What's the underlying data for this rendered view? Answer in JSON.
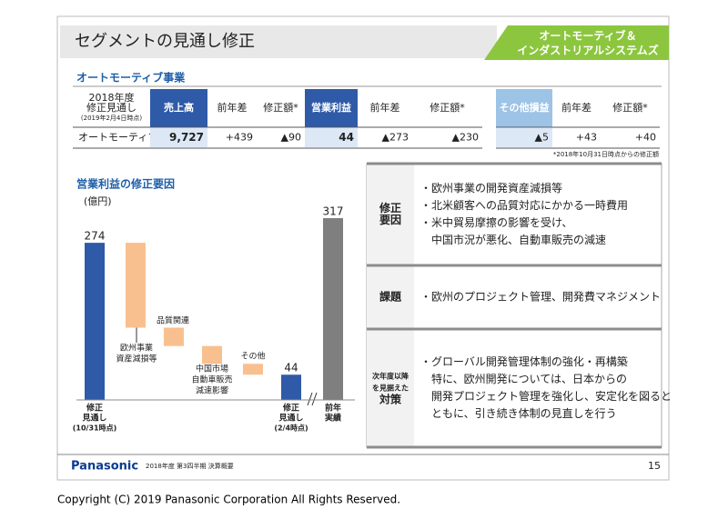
{
  "header": {
    "title": "セグメントの見通し修正",
    "tab": [
      "オートモーティブ＆",
      "インダストリアルシステムズ"
    ]
  },
  "section": "オートモーティブ事業",
  "table": {
    "header": [
      [
        "2018年度",
        "修正見通し",
        "(2019年2月4日時点)"
      ],
      "売上高",
      "前年差",
      "修正額*",
      "営業利益",
      "前年差",
      "修正額*",
      "その他損益",
      "前年差",
      "修正額*"
    ],
    "rows": [
      [
        "オートモーティブ",
        "9,727",
        "+439",
        "▲90",
        "44",
        "▲273",
        "▲230",
        "▲5",
        "+43",
        "+40"
      ]
    ],
    "note": "*2018年10月31日時点からの修正額"
  },
  "chart_data": {
    "type": "waterfall",
    "title": "営業利益の修正要因",
    "unit": "(億円)",
    "categories": [
      [
        "修正",
        "見通し",
        "(10/31時点)"
      ],
      [
        "欧州事業",
        "資産減損等"
      ],
      [
        "品質関連"
      ],
      [
        "中国市場",
        "自動車販売",
        "減速影響"
      ],
      [
        "その他"
      ],
      [
        "修正",
        "見通し",
        "(2/4時点)"
      ],
      [
        "前年",
        "実績"
      ]
    ],
    "values": [
      274,
      -148,
      -32,
      -31,
      -19,
      44,
      317
    ],
    "measure": [
      "total",
      "relative",
      "relative",
      "relative",
      "relative",
      "total",
      "total"
    ],
    "colors": [
      "#2e5aa8",
      "#f9c08f",
      "#f9c08f",
      "#f9c08f",
      "#f9c08f",
      "#2e5aa8",
      "#7f7f7f"
    ]
  },
  "panel": [
    {
      "label": [
        "修正",
        "要因"
      ],
      "lines": [
        "・欧州事業の開発資産減損等",
        "・北米顧客への品質対応にかかる一時費用",
        "・米中貿易摩擦の影響を受け、",
        "　中国市況が悪化、自動車販売の減速"
      ]
    },
    {
      "label": [
        "課題"
      ],
      "lines": [
        "・欧州のプロジェクト管理、開発費マネジメント"
      ]
    },
    {
      "label": [
        "次年度以降",
        "を見据えた",
        "対策"
      ],
      "lines": [
        "・グローバル開発管理体制の強化・再構築",
        "　特に、欧州開発については、日本からの",
        "　開発プロジェクト管理を強化し、安定化を図ると",
        "　ともに、引き続き体制の見直しを行う"
      ]
    }
  ],
  "footer": {
    "brand": "Panasonic",
    "doc": "2018年度 第3四半期 決算概要",
    "page": "15"
  },
  "copyright": "Copyright (C) 2019 Panasonic Corporation All Rights Reserved."
}
